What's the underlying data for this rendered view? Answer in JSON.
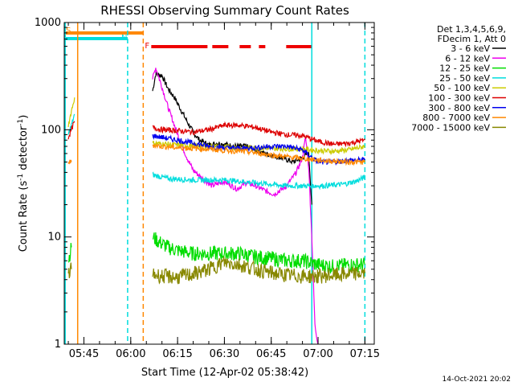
{
  "chart_data": {
    "type": "line",
    "title": "RHESSI Observing Summary Count Rates",
    "xlabel": "Start Time (12-Apr-02 05:38:42)",
    "ylabel_main": "Count Rate (s",
    "ylabel_sup1": "-1",
    "ylabel_mid": " detector",
    "ylabel_sup2": "-1",
    "ylabel_end": ")",
    "y_scale": "log",
    "ylim": [
      1,
      1000
    ],
    "xlim_minutes": [
      "05:38:42",
      "07:18:00"
    ],
    "x_ticks": [
      "05:45",
      "06:00",
      "06:15",
      "06:30",
      "06:45",
      "07:00",
      "07:15"
    ],
    "y_ticks": [
      {
        "value": 1,
        "label": "1"
      },
      {
        "value": 10,
        "label": "10"
      },
      {
        "value": 100,
        "label": "100"
      },
      {
        "value": 1000,
        "label": "1000"
      }
    ],
    "legend": {
      "placement": "right",
      "header": [
        "Det 1,3,4,5,6,9,",
        "FDecim 1, Att 0"
      ],
      "entries": [
        {
          "label": "3 - 6 keV",
          "color": "#000000"
        },
        {
          "label": "6 - 12 keV",
          "color": "#ee00ee"
        },
        {
          "label": "12 - 25 keV",
          "color": "#00dd00"
        },
        {
          "label": "25 - 50 keV",
          "color": "#00dddd"
        },
        {
          "label": "50 - 100 keV",
          "color": "#cccc00"
        },
        {
          "label": "100 - 300 keV",
          "color": "#dd0000"
        },
        {
          "label": "300 - 800 keV",
          "color": "#0000ee"
        },
        {
          "label": "800 - 7000 keV",
          "color": "#ff8800"
        },
        {
          "label": "7000 - 15000 keV",
          "color": "#888800"
        }
      ]
    },
    "flags": [
      {
        "label": "S",
        "color": "#ff8800",
        "start": "05:38:42",
        "end": "06:04:00"
      },
      {
        "label": "N",
        "color": "#00dddd",
        "start": "05:38:42",
        "end": "05:59:00"
      },
      {
        "label": "F",
        "color": "#ee0000",
        "start": "06:04:00",
        "end": "06:58:00"
      }
    ],
    "series": [
      {
        "name": "3 - 6 keV",
        "color": "#000000",
        "points": [
          [
            "06:07",
            230
          ],
          [
            "06:08",
            330
          ],
          [
            "06:10",
            320
          ],
          [
            "06:12",
            240
          ],
          [
            "06:14",
            200
          ],
          [
            "06:16",
            155
          ],
          [
            "06:18",
            120
          ],
          [
            "06:20",
            95
          ],
          [
            "06:22",
            80
          ],
          [
            "06:25",
            72
          ],
          [
            "06:28",
            75
          ],
          [
            "06:31",
            72
          ],
          [
            "06:34",
            70
          ],
          [
            "06:37",
            70
          ],
          [
            "06:40",
            65
          ],
          [
            "06:43",
            60
          ],
          [
            "06:46",
            57
          ],
          [
            "06:49",
            54
          ],
          [
            "06:52",
            50
          ],
          [
            "06:55",
            55
          ],
          [
            "06:57",
            60
          ],
          [
            "06:58",
            20
          ]
        ]
      },
      {
        "name": "6 - 12 keV",
        "color": "#ee00ee",
        "points": [
          [
            "06:07",
            300
          ],
          [
            "06:08",
            380
          ],
          [
            "06:10",
            250
          ],
          [
            "06:12",
            160
          ],
          [
            "06:14",
            110
          ],
          [
            "06:16",
            75
          ],
          [
            "06:18",
            55
          ],
          [
            "06:20",
            42
          ],
          [
            "06:23",
            35
          ],
          [
            "06:26",
            30
          ],
          [
            "06:30",
            33
          ],
          [
            "06:34",
            28
          ],
          [
            "06:37",
            32
          ],
          [
            "06:40",
            30
          ],
          [
            "06:43",
            27
          ],
          [
            "06:46",
            25
          ],
          [
            "06:50",
            30
          ],
          [
            "06:53",
            40
          ],
          [
            "06:55",
            55
          ],
          [
            "06:56",
            85
          ],
          [
            "06:57",
            45
          ],
          [
            "06:58",
            10
          ],
          [
            "06:59",
            1.5
          ],
          [
            "07:00",
            1.0
          ]
        ]
      },
      {
        "name": "12 - 25 keV",
        "color": "#00dd00",
        "points": [
          [
            "05:40",
            6
          ],
          [
            "05:41",
            8
          ],
          [
            "06:07",
            10
          ],
          [
            "06:09",
            9
          ],
          [
            "06:12",
            8
          ],
          [
            "06:15",
            7.5
          ],
          [
            "06:20",
            7
          ],
          [
            "06:25",
            7
          ],
          [
            "06:30",
            7
          ],
          [
            "06:35",
            7
          ],
          [
            "06:40",
            6.5
          ],
          [
            "06:45",
            6.3
          ],
          [
            "06:50",
            6
          ],
          [
            "06:55",
            6
          ],
          [
            "07:00",
            5.5
          ],
          [
            "07:05",
            5.3
          ],
          [
            "07:10",
            5.5
          ],
          [
            "07:15",
            5.5
          ]
        ]
      },
      {
        "name": "25 - 50 keV",
        "color": "#00dddd",
        "points": [
          [
            "05:40",
            90
          ],
          [
            "05:41",
            110
          ],
          [
            "05:42",
            140
          ],
          [
            "06:07",
            38
          ],
          [
            "06:12",
            35
          ],
          [
            "06:20",
            34
          ],
          [
            "06:30",
            34
          ],
          [
            "06:40",
            32
          ],
          [
            "06:50",
            30
          ],
          [
            "06:58",
            30
          ],
          [
            "07:02",
            30
          ],
          [
            "07:08",
            31
          ],
          [
            "07:12",
            33
          ],
          [
            "07:15",
            36
          ]
        ]
      },
      {
        "name": "50 - 100 keV",
        "color": "#cccc00",
        "points": [
          [
            "05:40",
            110
          ],
          [
            "05:41",
            150
          ],
          [
            "05:42",
            200
          ],
          [
            "06:07",
            75
          ],
          [
            "06:15",
            72
          ],
          [
            "06:25",
            70
          ],
          [
            "06:35",
            68
          ],
          [
            "06:45",
            67
          ],
          [
            "06:55",
            66
          ],
          [
            "07:00",
            64
          ],
          [
            "07:05",
            63
          ],
          [
            "07:10",
            65
          ],
          [
            "07:15",
            70
          ]
        ]
      },
      {
        "name": "100 - 300 keV",
        "color": "#dd0000",
        "points": [
          [
            "05:40",
            85
          ],
          [
            "05:41",
            100
          ],
          [
            "05:42",
            120
          ],
          [
            "06:07",
            105
          ],
          [
            "06:10",
            100
          ],
          [
            "06:15",
            98
          ],
          [
            "06:20",
            95
          ],
          [
            "06:25",
            100
          ],
          [
            "06:30",
            110
          ],
          [
            "06:35",
            110
          ],
          [
            "06:40",
            105
          ],
          [
            "06:45",
            95
          ],
          [
            "06:50",
            90
          ],
          [
            "06:55",
            88
          ],
          [
            "07:00",
            78
          ],
          [
            "07:05",
            73
          ],
          [
            "07:10",
            75
          ],
          [
            "07:15",
            80
          ]
        ]
      },
      {
        "name": "300 - 800 keV",
        "color": "#0000ee",
        "points": [
          [
            "06:07",
            88
          ],
          [
            "06:10",
            85
          ],
          [
            "06:15",
            80
          ],
          [
            "06:20",
            75
          ],
          [
            "06:25",
            70
          ],
          [
            "06:30",
            68
          ],
          [
            "06:35",
            67
          ],
          [
            "06:40",
            68
          ],
          [
            "06:45",
            70
          ],
          [
            "06:50",
            70
          ],
          [
            "06:55",
            65
          ],
          [
            "06:58",
            55
          ],
          [
            "07:00",
            50
          ],
          [
            "07:05",
            50
          ],
          [
            "07:10",
            52
          ],
          [
            "07:15",
            52
          ]
        ]
      },
      {
        "name": "800 - 7000 keV",
        "color": "#ff8800",
        "points": [
          [
            "05:40",
            50
          ],
          [
            "05:41",
            50
          ],
          [
            "06:07",
            72
          ],
          [
            "06:10",
            70
          ],
          [
            "06:15",
            68
          ],
          [
            "06:20",
            67
          ],
          [
            "06:25",
            66
          ],
          [
            "06:30",
            64
          ],
          [
            "06:35",
            63
          ],
          [
            "06:40",
            61
          ],
          [
            "06:45",
            58
          ],
          [
            "06:50",
            56
          ],
          [
            "06:55",
            54
          ],
          [
            "07:00",
            52
          ],
          [
            "07:05",
            51
          ],
          [
            "07:10",
            50
          ],
          [
            "07:15",
            50
          ]
        ]
      },
      {
        "name": "7000 - 15000 keV",
        "color": "#888800",
        "points": [
          [
            "05:40",
            4.5
          ],
          [
            "05:41",
            5
          ],
          [
            "06:07",
            4.5
          ],
          [
            "06:10",
            4.3
          ],
          [
            "06:15",
            4.2
          ],
          [
            "06:20",
            4.5
          ],
          [
            "06:25",
            5
          ],
          [
            "06:30",
            5.8
          ],
          [
            "06:35",
            5.5
          ],
          [
            "06:40",
            5
          ],
          [
            "06:45",
            4.6
          ],
          [
            "06:50",
            4.4
          ],
          [
            "06:55",
            4.3
          ],
          [
            "07:00",
            4.3
          ],
          [
            "07:05",
            4.4
          ],
          [
            "07:10",
            4.5
          ],
          [
            "07:15",
            4.6
          ]
        ]
      }
    ],
    "vertical_markers": [
      {
        "time": "05:39:00",
        "color": "#00dddd",
        "style": "solid"
      },
      {
        "time": "05:43:00",
        "color": "#ff8800",
        "style": "solid"
      },
      {
        "time": "05:59:00",
        "color": "#00dddd",
        "style": "dashed"
      },
      {
        "time": "06:04:00",
        "color": "#ff8800",
        "style": "dashed"
      },
      {
        "time": "06:58:00",
        "color": "#00dddd",
        "style": "solid"
      },
      {
        "time": "07:15:00",
        "color": "#00dddd",
        "style": "dashed"
      }
    ]
  },
  "footer": {
    "date_stamp": "14-Oct-2021 20:02"
  }
}
